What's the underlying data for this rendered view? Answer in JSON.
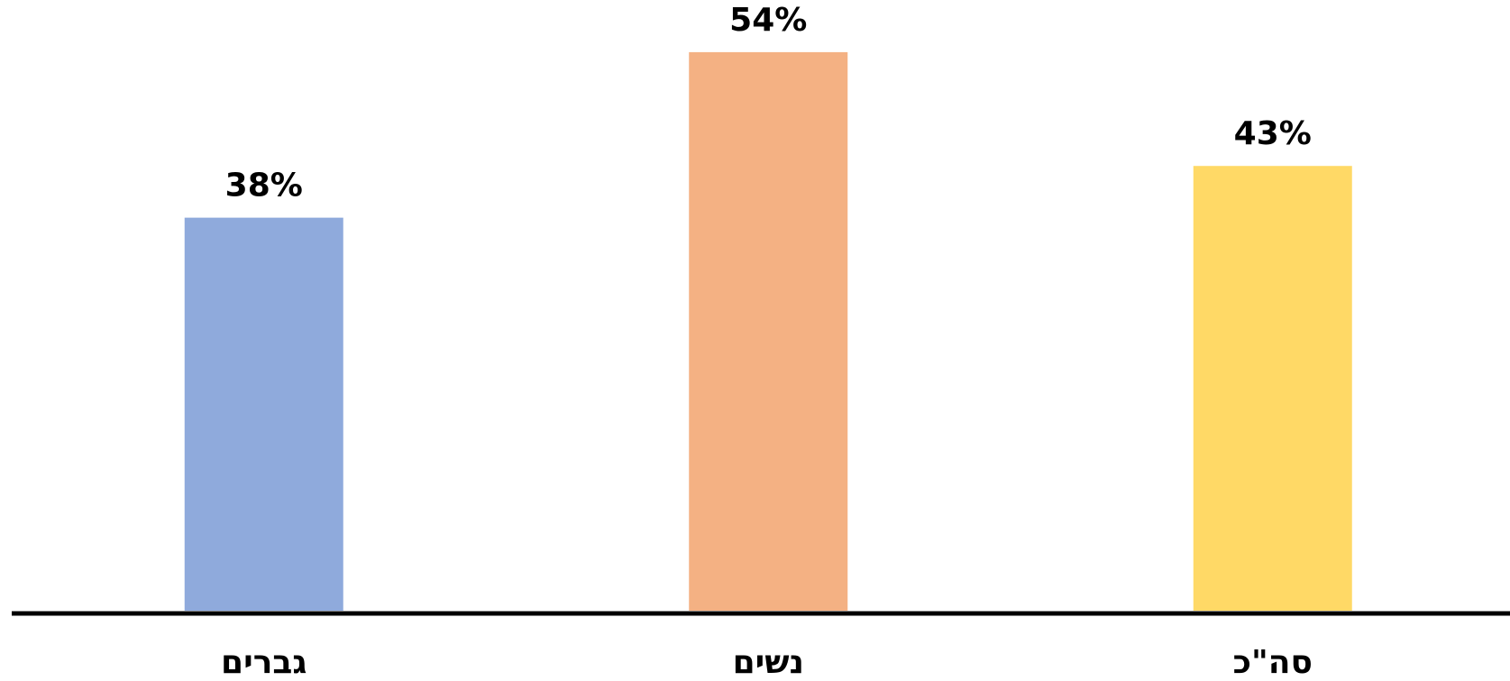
{
  "chart_data": {
    "type": "bar",
    "categories": [
      "גברים",
      "נשים",
      "סה\"כ"
    ],
    "values": [
      38,
      54,
      43
    ],
    "value_labels": [
      "38%",
      "54%",
      "43%"
    ],
    "colors": [
      "#8faadc",
      "#f4b183",
      "#ffd966"
    ],
    "ylim": [
      0,
      60
    ]
  }
}
